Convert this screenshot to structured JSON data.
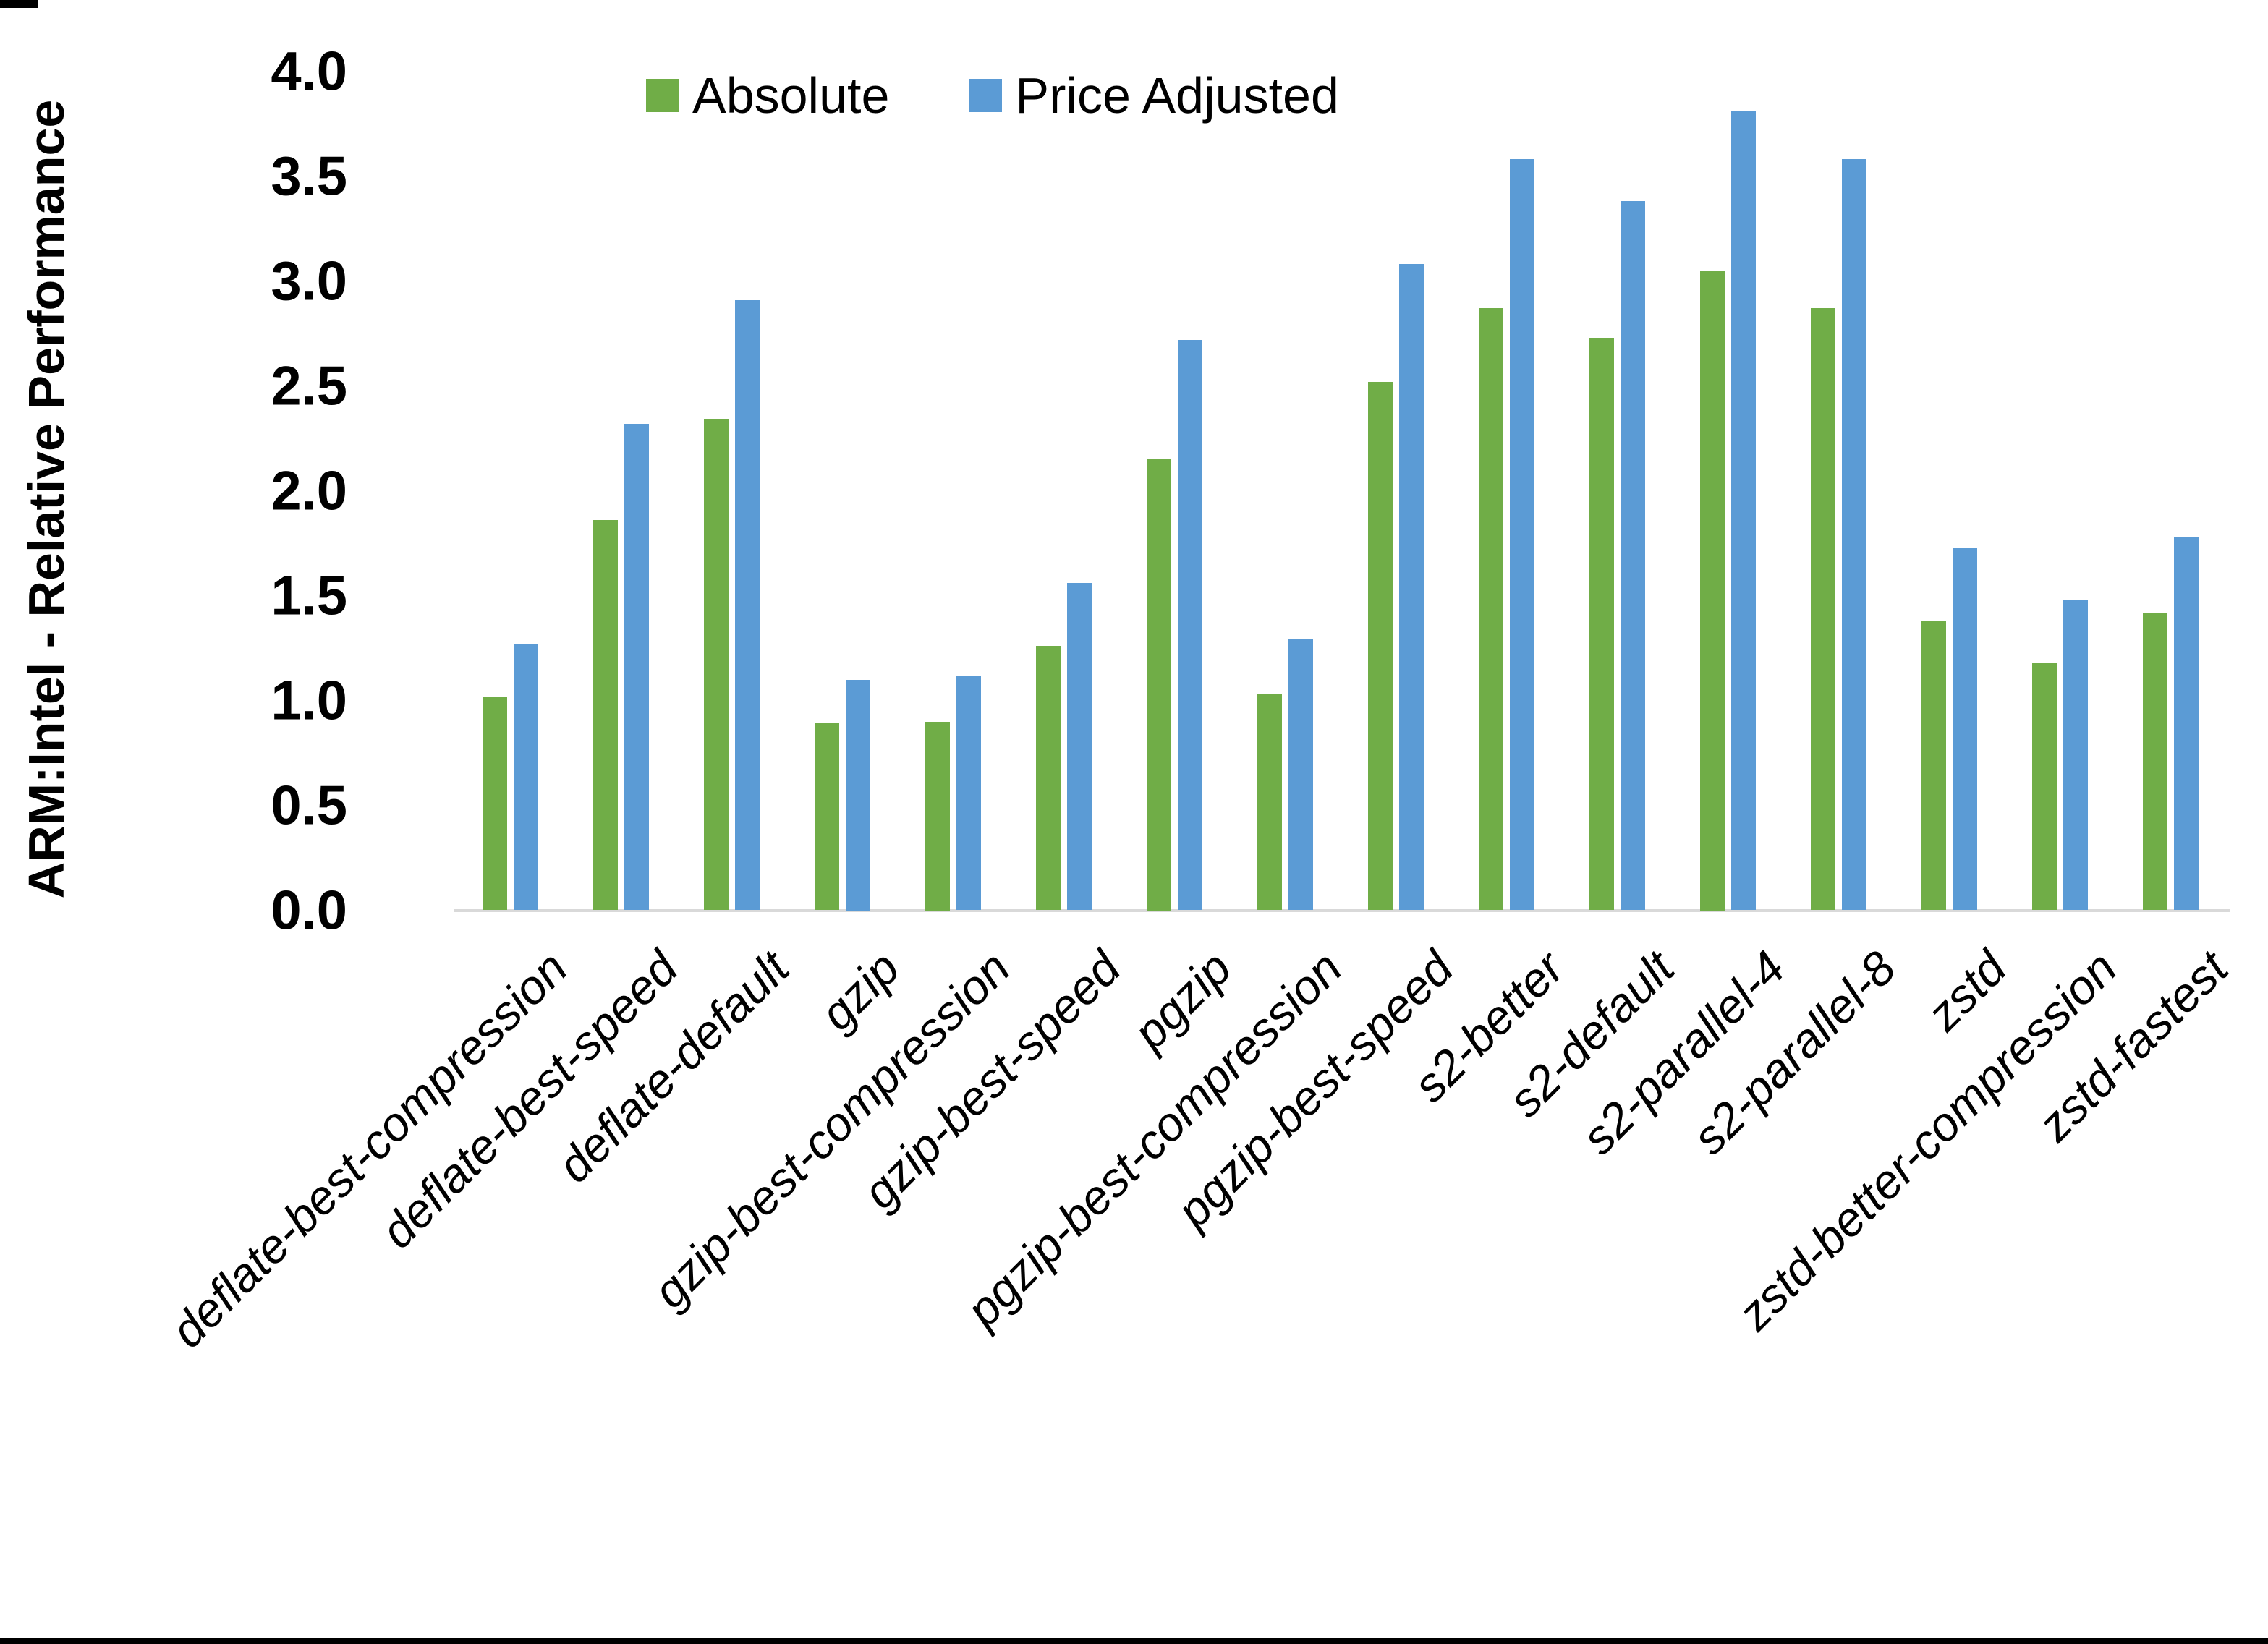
{
  "page": {
    "background": "#ffffff",
    "frame_color": "#000000"
  },
  "legend": {
    "items": [
      {
        "label": "Absolute",
        "color": "#70AD47"
      },
      {
        "label": "Price Adjusted",
        "color": "#5B9BD5"
      }
    ]
  },
  "y_axis": {
    "title": "ARM:Intel - Relative Performance",
    "ticks": [
      "0.0",
      "0.5",
      "1.0",
      "1.5",
      "2.0",
      "2.5",
      "3.0",
      "3.5",
      "4.0"
    ],
    "min": 0.0,
    "max": 4.0
  },
  "axis_line_color": "#d9d9d9",
  "chart_data": {
    "type": "bar",
    "title": "",
    "xlabel": "",
    "ylabel": "ARM:Intel - Relative Performance",
    "ylim": [
      0.0,
      4.0
    ],
    "grid": false,
    "legend_position": "top-center",
    "categories": [
      "deflate-best-compression",
      "deflate-best-speed",
      "deflate-default",
      "gzip",
      "gzip-best-compression",
      "gzip-best-speed",
      "pgzip",
      "pgzip-best-compression",
      "pgzip-best-speed",
      "s2-better",
      "s2-default",
      "s2-parallel-4",
      "s2-parallel-8",
      "zstd",
      "zstd-better-compression",
      "zstd-fastest"
    ],
    "series": [
      {
        "name": "Absolute",
        "color": "#70AD47",
        "values": [
          1.02,
          1.86,
          2.34,
          0.89,
          0.9,
          1.26,
          2.15,
          1.03,
          2.52,
          2.87,
          2.73,
          3.05,
          2.87,
          1.38,
          1.18,
          1.42
        ]
      },
      {
        "name": "Price Adjusted",
        "color": "#5B9BD5",
        "values": [
          1.27,
          2.32,
          2.91,
          1.1,
          1.12,
          1.56,
          2.72,
          1.29,
          3.08,
          3.58,
          3.38,
          3.81,
          3.58,
          1.73,
          1.48,
          1.78
        ]
      }
    ]
  }
}
